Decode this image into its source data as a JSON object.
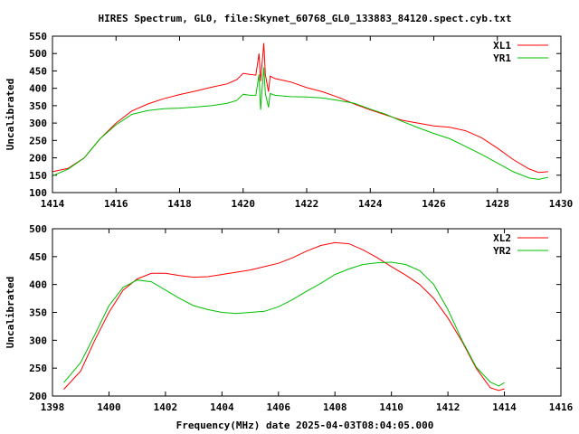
{
  "title": "HIRES Spectrum, GL0, file:Skynet_60768_GL0_133883_84120.spect.cyb.txt",
  "xlabel": "Frequency(MHz) date 2025-04-03T08:04:05.000",
  "chart_data": [
    {
      "type": "line",
      "ylabel": "Uncalibrated",
      "xlim": [
        1414,
        1430
      ],
      "ylim": [
        100,
        550
      ],
      "xticks": [
        1414,
        1416,
        1418,
        1420,
        1422,
        1424,
        1426,
        1428,
        1430
      ],
      "yticks": [
        100,
        150,
        200,
        250,
        300,
        350,
        400,
        450,
        500,
        550
      ],
      "legend": "top-right",
      "series": [
        {
          "name": "XL1",
          "color": "#ff0000",
          "x": [
            1414.0,
            1414.5,
            1415,
            1415.5,
            1416,
            1416.5,
            1417,
            1417.5,
            1418,
            1418.5,
            1419,
            1419.5,
            1419.8,
            1420,
            1420.2,
            1420.4,
            1420.5,
            1420.55,
            1420.65,
            1420.7,
            1420.8,
            1420.85,
            1421,
            1421.5,
            1422,
            1422.5,
            1423,
            1423.5,
            1424,
            1424.5,
            1425,
            1425.5,
            1426,
            1426.5,
            1427,
            1427.5,
            1428,
            1428.5,
            1429,
            1429.3,
            1429.6
          ],
          "y": [
            160,
            170,
            200,
            255,
            300,
            335,
            355,
            370,
            382,
            392,
            403,
            413,
            425,
            443,
            440,
            438,
            500,
            420,
            530,
            440,
            390,
            435,
            428,
            418,
            402,
            390,
            374,
            355,
            338,
            323,
            308,
            300,
            292,
            288,
            278,
            258,
            228,
            195,
            168,
            158,
            160
          ]
        },
        {
          "name": "YR1",
          "color": "#00c000",
          "x": [
            1414.0,
            1414.5,
            1415,
            1415.5,
            1416,
            1416.5,
            1417,
            1417.5,
            1418,
            1418.5,
            1419,
            1419.5,
            1419.8,
            1420,
            1420.2,
            1420.4,
            1420.5,
            1420.55,
            1420.6,
            1420.65,
            1420.7,
            1420.8,
            1420.85,
            1421,
            1421.5,
            1422,
            1422.5,
            1423,
            1423.5,
            1424,
            1424.5,
            1425,
            1425.5,
            1426,
            1426.5,
            1427,
            1427.5,
            1428,
            1428.5,
            1429,
            1429.3,
            1429.6
          ],
          "y": [
            148,
            168,
            200,
            255,
            295,
            325,
            336,
            341,
            343,
            346,
            350,
            357,
            365,
            383,
            380,
            380,
            440,
            338,
            400,
            460,
            385,
            345,
            385,
            380,
            376,
            375,
            372,
            365,
            357,
            340,
            325,
            305,
            287,
            270,
            255,
            233,
            210,
            185,
            160,
            142,
            138,
            144
          ]
        }
      ]
    },
    {
      "type": "line",
      "ylabel": "Uncalibrated",
      "xlim": [
        1398,
        1416
      ],
      "ylim": [
        200,
        500
      ],
      "xticks": [
        1398,
        1400,
        1402,
        1404,
        1406,
        1408,
        1410,
        1412,
        1414,
        1416
      ],
      "yticks": [
        200,
        250,
        300,
        350,
        400,
        450,
        500
      ],
      "legend": "top-right",
      "series": [
        {
          "name": "XL2",
          "color": "#ff0000",
          "x": [
            1398.4,
            1399,
            1399.5,
            1400,
            1400.5,
            1401,
            1401.5,
            1402,
            1402.5,
            1403,
            1403.5,
            1404,
            1404.5,
            1405,
            1405.5,
            1406,
            1406.5,
            1407,
            1407.5,
            1408,
            1408.5,
            1409,
            1409.5,
            1410,
            1410.5,
            1411,
            1411.5,
            1412,
            1412.5,
            1413,
            1413.5,
            1413.8,
            1414
          ],
          "y": [
            212,
            245,
            300,
            350,
            390,
            410,
            420,
            420,
            416,
            413,
            414,
            418,
            422,
            426,
            432,
            438,
            448,
            460,
            470,
            475,
            473,
            462,
            448,
            432,
            417,
            400,
            375,
            340,
            298,
            250,
            215,
            210,
            213
          ]
        },
        {
          "name": "YR2",
          "color": "#00c000",
          "x": [
            1398.4,
            1399,
            1399.5,
            1400,
            1400.5,
            1401,
            1401.5,
            1402,
            1402.5,
            1403,
            1403.5,
            1404,
            1404.5,
            1405,
            1405.5,
            1406,
            1406.5,
            1407,
            1407.5,
            1408,
            1408.5,
            1409,
            1409.5,
            1410,
            1410.5,
            1411,
            1411.5,
            1412,
            1412.5,
            1413,
            1413.5,
            1413.8,
            1414
          ],
          "y": [
            224,
            260,
            310,
            362,
            395,
            408,
            405,
            390,
            375,
            362,
            355,
            350,
            348,
            350,
            352,
            360,
            373,
            388,
            402,
            418,
            428,
            436,
            439,
            440,
            436,
            425,
            400,
            355,
            300,
            252,
            225,
            218,
            224
          ]
        }
      ]
    }
  ]
}
